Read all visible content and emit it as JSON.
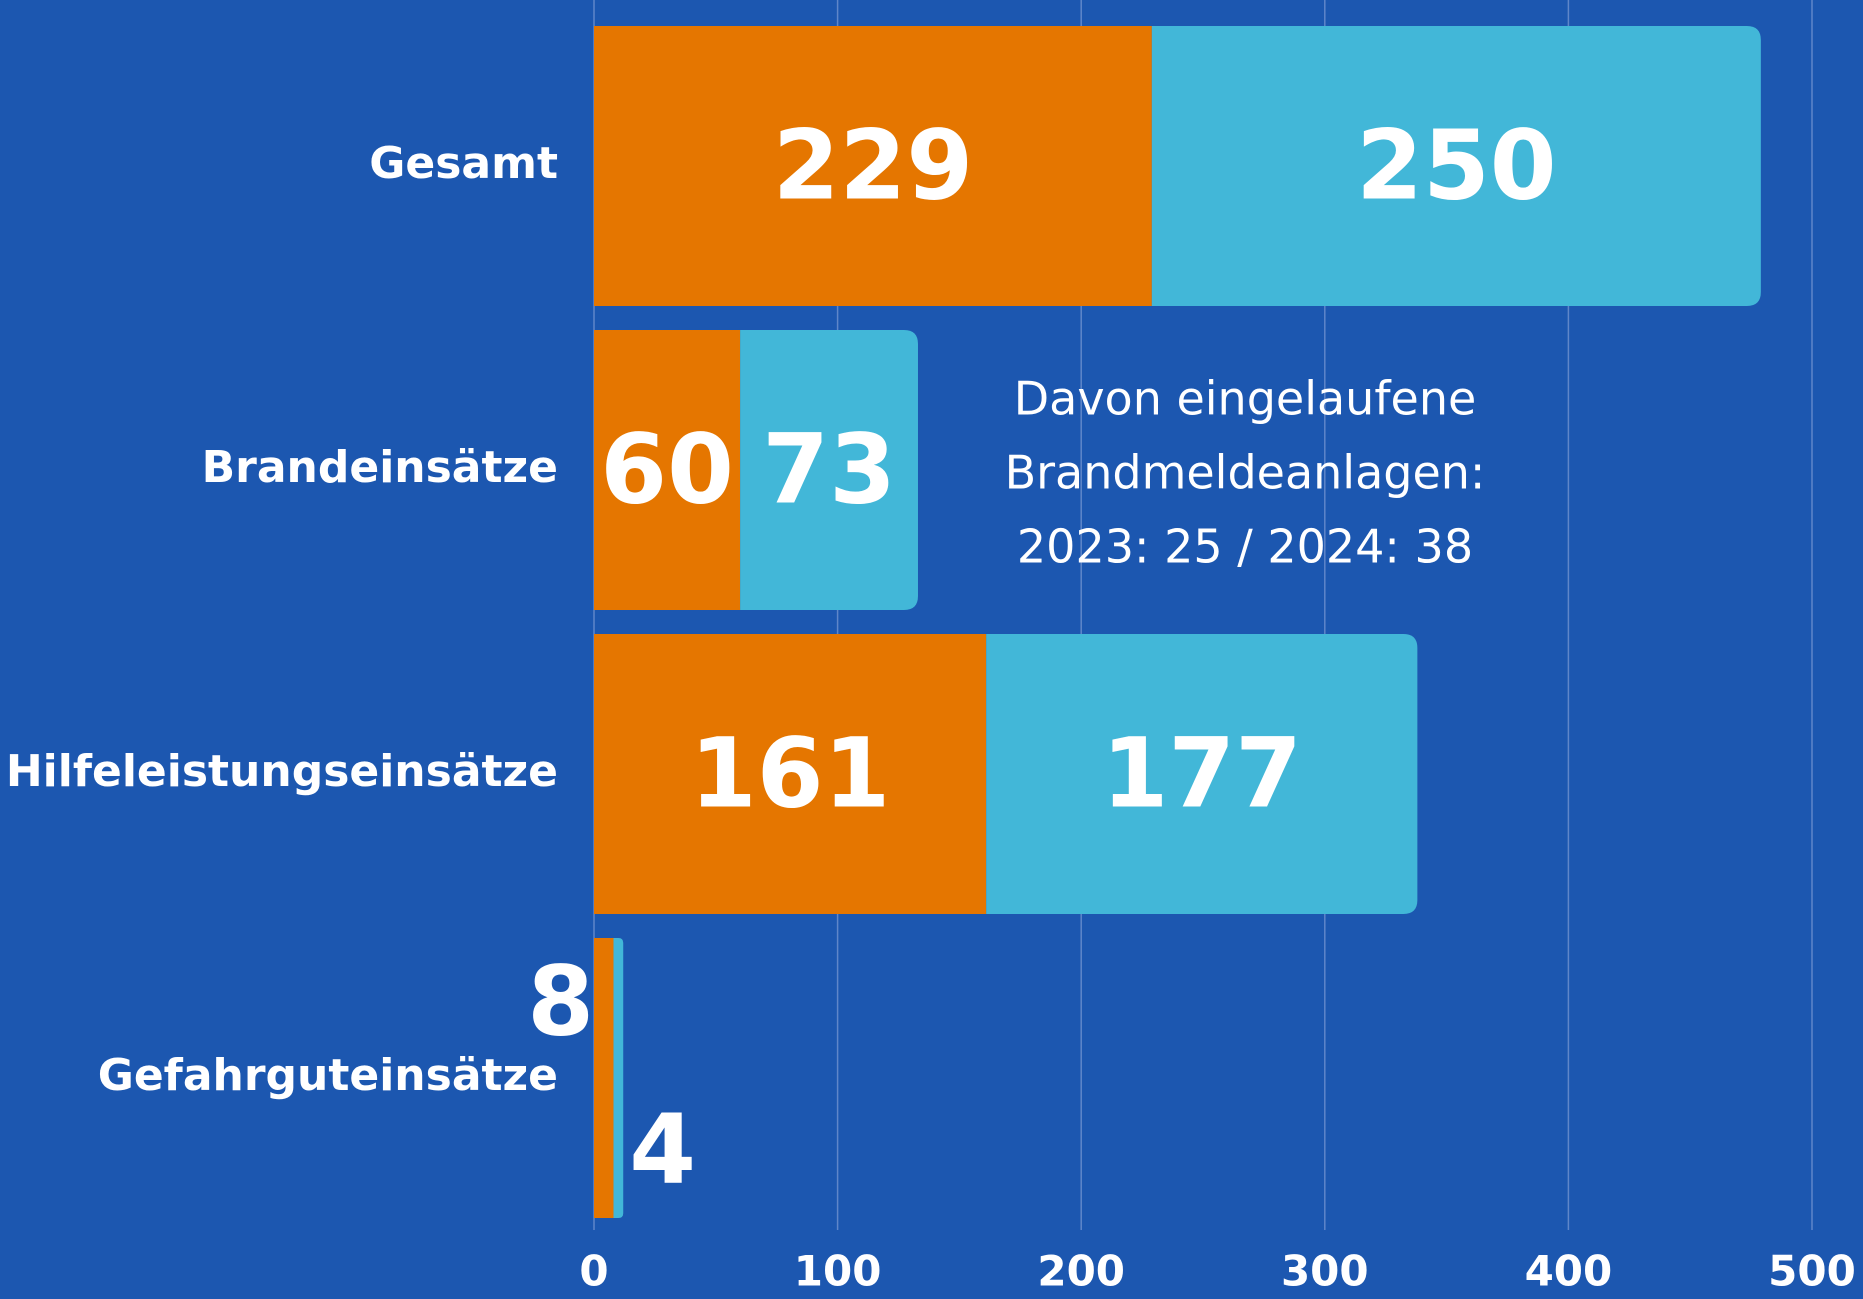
{
  "chart_data": {
    "type": "bar",
    "orientation": "horizontal",
    "stacked": true,
    "categories": [
      "Gesamt",
      "Brandeinsätze",
      "Hilfeleistungseinsätze",
      "Gefahrguteinsätze"
    ],
    "series": [
      {
        "color": "#e57600",
        "values": [
          229,
          60,
          161,
          8
        ]
      },
      {
        "color": "#42b7d8",
        "values": [
          250,
          73,
          177,
          4
        ]
      }
    ],
    "xlim": [
      0,
      500
    ],
    "xticks": [
      0,
      100,
      200,
      300,
      400,
      500
    ],
    "grid": true,
    "annotation": [
      "Davon eingelaufene",
      "Brandmeldeanlagen:",
      "2023: 25 / 2024: 38"
    ]
  }
}
